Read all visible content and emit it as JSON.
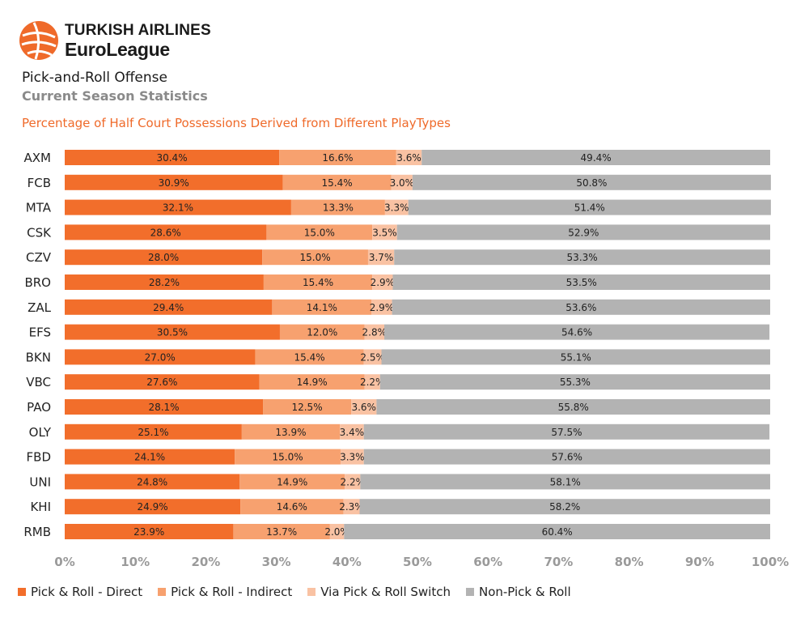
{
  "brand": {
    "line1": "TURKISH AIRLINES",
    "line2": "EuroLeague"
  },
  "header": {
    "title": "Pick-and-Roll Offense",
    "subtitle": "Current Season Statistics",
    "chart_title": "Percentage of Half Court Possessions Derived from Different PlayTypes"
  },
  "colors": {
    "direct": "#f26e2b",
    "indirect": "#f7a16f",
    "switch": "#f9c2a3",
    "non_pnr": "#b3b3b3",
    "accent": "#ef6a2a",
    "tick_text": "#9a9a9a"
  },
  "chart_data": {
    "type": "bar",
    "orientation": "horizontal",
    "stacked": true,
    "title": "Percentage of Half Court Possessions Derived from Different PlayTypes",
    "xlim": [
      0,
      100
    ],
    "x_ticks": [
      "0%",
      "10%",
      "20%",
      "30%",
      "40%",
      "50%",
      "60%",
      "70%",
      "80%",
      "90%",
      "100%"
    ],
    "grid": false,
    "legend_position": "bottom",
    "categories": [
      "AXM",
      "FCB",
      "MTA",
      "CSK",
      "CZV",
      "BRO",
      "ZAL",
      "EFS",
      "BKN",
      "VBC",
      "PAO",
      "OLY",
      "FBD",
      "UNI",
      "KHI",
      "RMB"
    ],
    "series": [
      {
        "name": "Pick & Roll - Direct",
        "values": [
          30.4,
          30.9,
          32.1,
          28.6,
          28.0,
          28.2,
          29.4,
          30.5,
          27.0,
          27.6,
          28.1,
          25.1,
          24.1,
          24.8,
          24.9,
          23.9
        ]
      },
      {
        "name": "Pick & Roll - Indirect",
        "values": [
          16.6,
          15.4,
          13.3,
          15.0,
          15.0,
          15.4,
          14.1,
          12.0,
          15.4,
          14.9,
          12.5,
          13.9,
          15.0,
          14.9,
          14.6,
          13.7
        ]
      },
      {
        "name": "Via Pick & Roll Switch",
        "values": [
          3.6,
          3.0,
          3.3,
          3.5,
          3.7,
          2.9,
          2.9,
          2.8,
          2.5,
          2.2,
          3.6,
          3.4,
          3.3,
          2.2,
          2.3,
          2.0
        ]
      },
      {
        "name": "Non-Pick & Roll",
        "values": [
          49.4,
          50.8,
          51.4,
          52.9,
          53.3,
          53.5,
          53.6,
          54.6,
          55.1,
          55.3,
          55.8,
          57.5,
          57.6,
          58.1,
          58.2,
          60.4
        ]
      }
    ]
  }
}
